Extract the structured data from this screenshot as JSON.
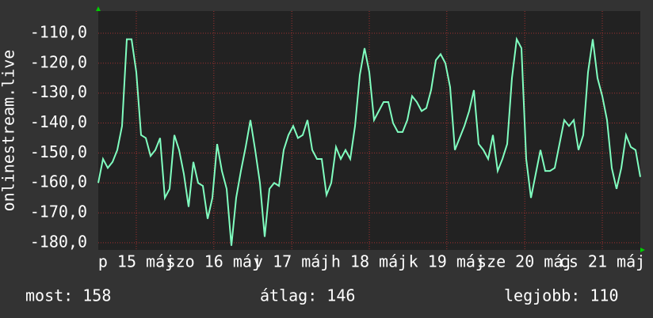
{
  "chart_data": {
    "type": "line",
    "ylabel": "onlinestream.live",
    "values": [
      -160,
      -152,
      -155,
      -153,
      -149,
      -141,
      -112,
      -112,
      -123,
      -144,
      -145,
      -151,
      -149,
      -145,
      -165,
      -162,
      -144,
      -149,
      -157,
      -168,
      -153,
      -160,
      -161,
      -172,
      -165,
      -147,
      -156,
      -162,
      -181,
      -165,
      -156,
      -148,
      -139,
      -149,
      -160,
      -178,
      -162,
      -160,
      -161,
      -149,
      -144,
      -141,
      -145,
      -144,
      -139,
      -149,
      -152,
      -152,
      -164,
      -160,
      -148,
      -152,
      -149,
      -152,
      -141,
      -124,
      -115,
      -123,
      -139,
      -136,
      -133,
      -133,
      -140,
      -143,
      -143,
      -139,
      -131,
      -133,
      -136,
      -135,
      -129,
      -119,
      -117,
      -120,
      -128,
      -149,
      -145,
      -141,
      -136,
      -129,
      -147,
      -149,
      -152,
      -144,
      -156,
      -152,
      -147,
      -125,
      -112,
      -115,
      -152,
      -165,
      -157,
      -149,
      -156,
      -156,
      -155,
      -147,
      -139,
      -141,
      -139,
      -149,
      -144,
      -123,
      -112,
      -125,
      -131,
      -139,
      -155,
      -162,
      -155,
      -144,
      -148,
      -149,
      -158
    ],
    "color": "#80ffc0",
    "xlim": [
      0,
      114
    ],
    "xticks": [
      {
        "value": 8,
        "label": "p 15 máj"
      },
      {
        "value": 24.3,
        "label": "szo 16 máj"
      },
      {
        "value": 40.7,
        "label": "v 17 máj"
      },
      {
        "value": 57,
        "label": "h 18 máj"
      },
      {
        "value": 73.3,
        "label": "k 19 máj"
      },
      {
        "value": 89.7,
        "label": "sze 20 máj"
      },
      {
        "value": 106,
        "label": "cs 21 máj"
      }
    ],
    "ylim": [
      -182.4,
      -102.6
    ],
    "yticks": [
      {
        "value": -110,
        "label": "-110,0"
      },
      {
        "value": -120,
        "label": "-120,0"
      },
      {
        "value": -130,
        "label": "-130,0"
      },
      {
        "value": -140,
        "label": "-140,0"
      },
      {
        "value": -150,
        "label": "-150,0"
      },
      {
        "value": -160,
        "label": "-160,0"
      },
      {
        "value": -170,
        "label": "-170,0"
      },
      {
        "value": -180,
        "label": "-180,0"
      }
    ],
    "grid": true,
    "stats": [
      "most: 158",
      "átlag: 146",
      "legjobb: 110"
    ]
  }
}
